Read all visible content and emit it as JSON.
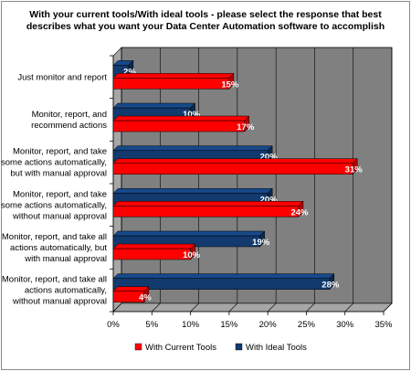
{
  "chart_data": {
    "type": "bar",
    "orientation": "horizontal",
    "title_lines": [
      "With your current tools/With ideal tools - please select the response that best",
      "describes what you want your Data Center Automation software to accomplish"
    ],
    "categories": [
      [
        "Just monitor and report"
      ],
      [
        "Monitor, report, and",
        "recommend actions"
      ],
      [
        "Monitor, report, and take",
        "some actions automatically,",
        "but with manual approval"
      ],
      [
        "Monitor, report, and take",
        "some actions automatically,",
        "without manual approval"
      ],
      [
        "Monitor, report, and take all",
        "actions automatically, but",
        "with manual approval"
      ],
      [
        "Monitor, report, and take all",
        "actions automatically,",
        "without manual approval"
      ]
    ],
    "series": [
      {
        "name": "With Current Tools",
        "color": "#ff0000",
        "values": [
          15,
          17,
          31,
          24,
          10,
          4
        ]
      },
      {
        "name": "With Ideal Tools",
        "color": "#123a6e",
        "values": [
          2,
          10,
          20,
          20,
          19,
          28
        ]
      }
    ],
    "xlim": [
      0,
      35
    ],
    "x_ticks": [
      "0%",
      "5%",
      "10%",
      "15%",
      "20%",
      "25%",
      "30%",
      "35%"
    ],
    "value_suffix": "%",
    "grid": true,
    "plot_background": "#808080",
    "legend_position": "bottom"
  }
}
